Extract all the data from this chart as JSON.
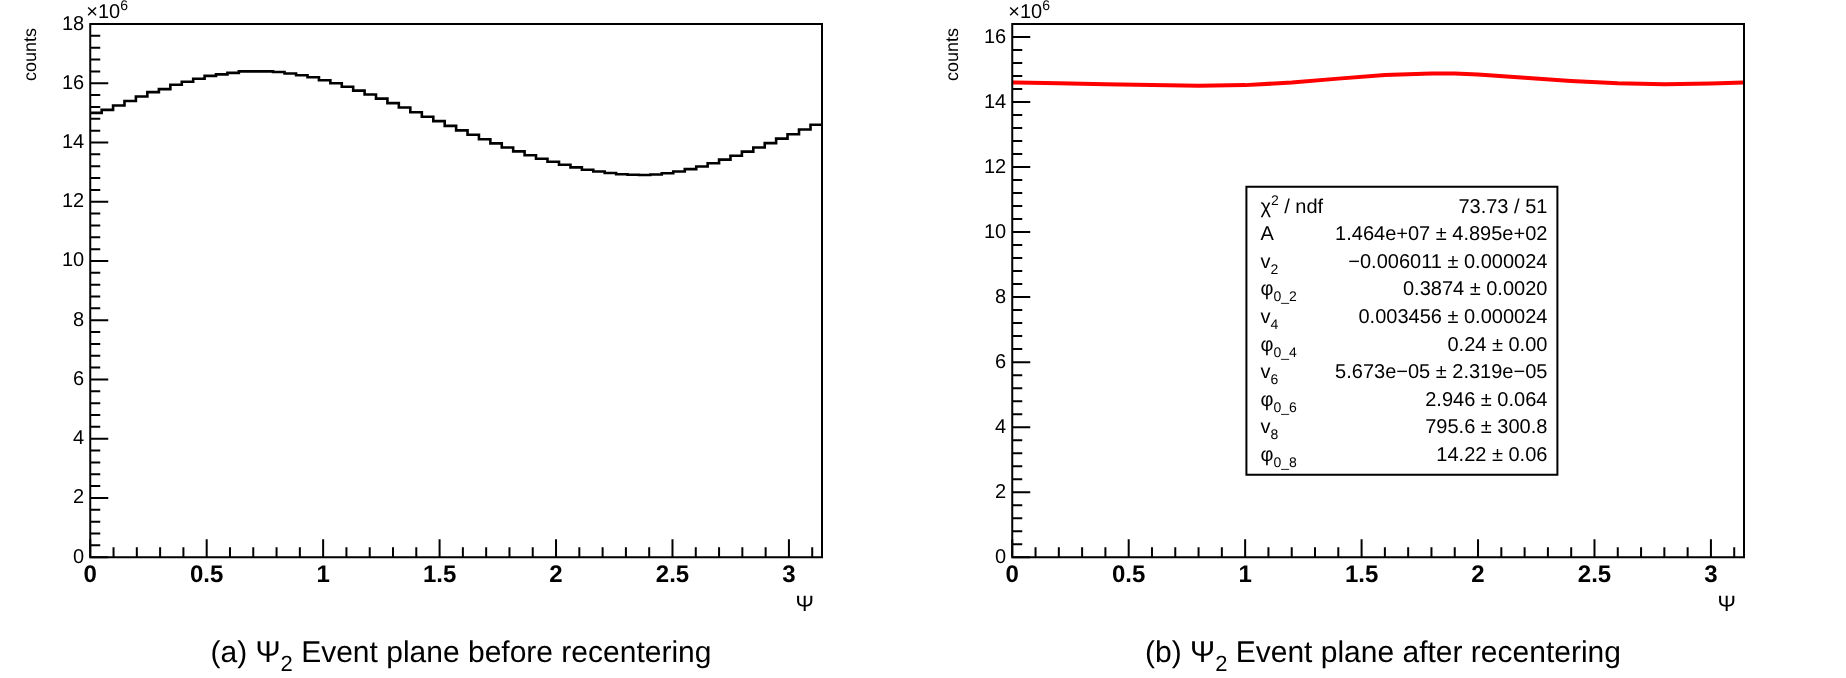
{
  "chart_data": [
    {
      "type": "histogram",
      "title": "(a) Ψ$_{2}$ Event plane before recentering",
      "xlabel": "Ψ",
      "ylabel": "counts",
      "annotations": [
        "×10$^{6}$"
      ],
      "bins": [
        0,
        0.049,
        0.098,
        0.147,
        0.196,
        0.245,
        0.295,
        0.344,
        0.393,
        0.442,
        0.491,
        0.54,
        0.589,
        0.638,
        0.687,
        0.736,
        0.785,
        0.834,
        0.884,
        0.933,
        0.982,
        1.031,
        1.08,
        1.129,
        1.178,
        1.227,
        1.276,
        1.325,
        1.374,
        1.424,
        1.473,
        1.522,
        1.571,
        1.62,
        1.669,
        1.718,
        1.767,
        1.816,
        1.865,
        1.914,
        1.963,
        2.013,
        2.062,
        2.111,
        2.16,
        2.209,
        2.258,
        2.307,
        2.356,
        2.405,
        2.454,
        2.503,
        2.553,
        2.602,
        2.651,
        2.7,
        2.749,
        2.798,
        2.847,
        2.896,
        2.945,
        2.994,
        3.043,
        3.093,
        3.142
      ],
      "values": [
        15.0,
        15.1,
        15.25,
        15.4,
        15.55,
        15.7,
        15.8,
        15.95,
        16.05,
        16.15,
        16.25,
        16.3,
        16.35,
        16.4,
        16.4,
        16.4,
        16.38,
        16.33,
        16.27,
        16.2,
        16.1,
        16.0,
        15.88,
        15.75,
        15.62,
        15.48,
        15.33,
        15.18,
        15.02,
        14.87,
        14.72,
        14.56,
        14.41,
        14.26,
        14.11,
        13.97,
        13.83,
        13.7,
        13.57,
        13.45,
        13.35,
        13.25,
        13.16,
        13.08,
        13.02,
        12.97,
        12.93,
        12.91,
        12.9,
        12.92,
        12.96,
        13.02,
        13.1,
        13.19,
        13.3,
        13.42,
        13.55,
        13.69,
        13.83,
        13.98,
        14.13,
        14.28,
        14.44,
        14.6
      ],
      "color": "#000000",
      "xlim": [
        0,
        3.142
      ],
      "xticks": [
        0,
        0.5,
        1,
        1.5,
        2,
        2.5,
        3
      ],
      "ylim": [
        0,
        18
      ],
      "yticks": [
        0,
        2,
        4,
        6,
        8,
        10,
        12,
        14,
        16,
        18
      ],
      "grid": false,
      "legend": false
    },
    {
      "type": "line",
      "title": "(b) Ψ$_{2}$ Event plane after recentering",
      "xlabel": "Ψ",
      "ylabel": "counts",
      "annotations": [
        "×10$^{6}$",
        "χ$^{2}$ / ndf",
        "73.73 / 51",
        "A",
        "1.464e+07 ± 4.895e+02",
        "v$_{2}$",
        "−0.006011 ± 0.000024",
        "φ$_{0_2}$",
        "0.3874 ± 0.0020",
        "v$_{4}$",
        "0.003456 ± 0.000024",
        "φ$_{0_4}$",
        "0.24 ± 0.00",
        "v$_{6}$",
        "5.673e−05 ± 2.319e−05",
        "φ$_{0_6}$",
        "2.946 ± 0.064",
        "v$_{8}$",
        "795.6 ± 300.8",
        "φ$_{0_8}$",
        "14.22 ± 0.06"
      ],
      "x": [
        0,
        0.2,
        0.4,
        0.6,
        0.8,
        1.0,
        1.2,
        1.4,
        1.6,
        1.8,
        1.9,
        2.0,
        2.2,
        2.4,
        2.6,
        2.8,
        3.0,
        3.142
      ],
      "series": [
        {
          "color": "#ff0000",
          "values": [
            14.6,
            14.58,
            14.55,
            14.52,
            14.5,
            14.52,
            14.6,
            14.72,
            14.83,
            14.88,
            14.88,
            14.85,
            14.75,
            14.65,
            14.58,
            14.55,
            14.57,
            14.6
          ]
        }
      ],
      "xlim": [
        0,
        3.142
      ],
      "xticks": [
        0,
        0.5,
        1,
        1.5,
        2,
        2.5,
        3
      ],
      "ylim": [
        0,
        16.4
      ],
      "yticks": [
        0,
        2,
        4,
        6,
        8,
        10,
        12,
        14,
        16
      ],
      "grid": false,
      "legend": false,
      "marker": "none",
      "line_style": "solid"
    }
  ]
}
